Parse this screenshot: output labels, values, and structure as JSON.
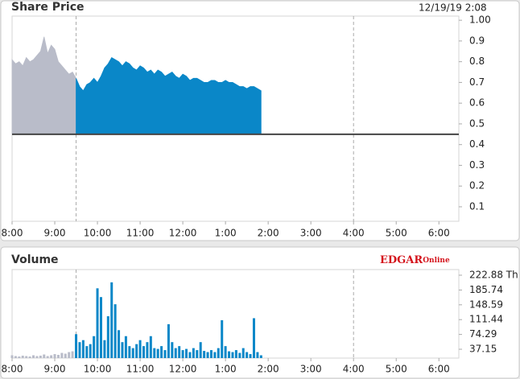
{
  "chart_data": [
    {
      "type": "area",
      "title": "Share Price",
      "date_label": "12/19/19 2:08",
      "xlim": [
        480,
        1108
      ],
      "xticks": [
        {
          "value": 480,
          "label": "8:00"
        },
        {
          "value": 540,
          "label": "9:00"
        },
        {
          "value": 600,
          "label": "10:00"
        },
        {
          "value": 660,
          "label": "11:00"
        },
        {
          "value": 720,
          "label": "12:00"
        },
        {
          "value": 780,
          "label": "1:00"
        },
        {
          "value": 840,
          "label": "2:00"
        },
        {
          "value": 900,
          "label": "3:00"
        },
        {
          "value": 960,
          "label": "4:00"
        },
        {
          "value": 1020,
          "label": "5:00"
        },
        {
          "value": 1080,
          "label": "6:00"
        }
      ],
      "ylim": [
        0.03,
        1.02
      ],
      "yticks": [
        {
          "value": 1.0,
          "label": "1.00"
        },
        0.9,
        0.8,
        0.7,
        0.6,
        0.5,
        0.4,
        0.3,
        0.2,
        0.1
      ],
      "reference_line": 0.45,
      "session_lines": [
        570,
        960
      ],
      "series": [
        {
          "color": "#b9bcc9",
          "x": [
            480,
            485,
            490,
            495,
            500,
            505,
            510,
            515,
            520,
            525,
            530,
            535,
            540,
            545,
            550,
            555,
            560,
            565,
            570
          ],
          "values": [
            0.81,
            0.79,
            0.8,
            0.78,
            0.82,
            0.8,
            0.81,
            0.83,
            0.85,
            0.92,
            0.84,
            0.88,
            0.86,
            0.8,
            0.78,
            0.76,
            0.74,
            0.75,
            0.72
          ]
        },
        {
          "color": "#0a87c8",
          "x": [
            570,
            575,
            580,
            585,
            590,
            595,
            600,
            605,
            610,
            615,
            620,
            625,
            630,
            635,
            640,
            645,
            650,
            655,
            660,
            665,
            670,
            675,
            680,
            685,
            690,
            695,
            700,
            705,
            710,
            715,
            720,
            725,
            730,
            735,
            740,
            745,
            750,
            755,
            760,
            765,
            770,
            775,
            780,
            785,
            790,
            795,
            800,
            805,
            810,
            815,
            820,
            825,
            830
          ],
          "values": [
            0.72,
            0.68,
            0.66,
            0.69,
            0.7,
            0.72,
            0.7,
            0.73,
            0.77,
            0.79,
            0.82,
            0.81,
            0.8,
            0.78,
            0.8,
            0.79,
            0.77,
            0.76,
            0.78,
            0.77,
            0.75,
            0.76,
            0.74,
            0.76,
            0.75,
            0.73,
            0.74,
            0.75,
            0.73,
            0.72,
            0.74,
            0.73,
            0.71,
            0.72,
            0.72,
            0.71,
            0.7,
            0.7,
            0.71,
            0.71,
            0.7,
            0.7,
            0.71,
            0.7,
            0.7,
            0.69,
            0.68,
            0.68,
            0.67,
            0.68,
            0.68,
            0.67,
            0.66
          ]
        }
      ]
    },
    {
      "type": "bar",
      "title": "Volume",
      "logo": [
        "EDGAR",
        "Online"
      ],
      "xlim": [
        480,
        1108
      ],
      "xticks": [
        {
          "value": 480,
          "label": "8:00"
        },
        {
          "value": 540,
          "label": "9:00"
        },
        {
          "value": 600,
          "label": "10:00"
        },
        {
          "value": 660,
          "label": "11:00"
        },
        {
          "value": 720,
          "label": "12:00"
        },
        {
          "value": 780,
          "label": "1:00"
        },
        {
          "value": 840,
          "label": "2:00"
        },
        {
          "value": 900,
          "label": "3:00"
        },
        {
          "value": 960,
          "label": "4:00"
        },
        {
          "value": 1020,
          "label": "5:00"
        },
        {
          "value": 1080,
          "label": "6:00"
        }
      ],
      "ylim": [
        15,
        237
      ],
      "yticks": [
        {
          "value": 222.88,
          "label": "222.88 Th"
        },
        185.74,
        148.59,
        111.44,
        74.29,
        37.15
      ],
      "session_lines": [
        570,
        960
      ],
      "series": [
        {
          "color": "#b9bcc9",
          "x": [
            480,
            485,
            490,
            495,
            500,
            505,
            510,
            515,
            520,
            525,
            530,
            535,
            540,
            545,
            550,
            555,
            560,
            565
          ],
          "values": [
            22,
            20,
            19,
            21,
            20,
            19,
            22,
            20,
            21,
            24,
            20,
            22,
            25,
            23,
            28,
            26,
            30,
            32
          ]
        },
        {
          "color": "#0a87c8",
          "x": [
            570,
            575,
            580,
            585,
            590,
            595,
            600,
            605,
            610,
            615,
            620,
            625,
            630,
            635,
            640,
            645,
            650,
            655,
            660,
            665,
            670,
            675,
            680,
            685,
            690,
            695,
            700,
            705,
            710,
            715,
            720,
            725,
            730,
            735,
            740,
            745,
            750,
            755,
            760,
            765,
            770,
            775,
            780,
            785,
            790,
            795,
            800,
            805,
            810,
            815,
            820,
            825,
            830
          ],
          "values": [
            75,
            55,
            60,
            45,
            50,
            70,
            190,
            168,
            60,
            120,
            205,
            150,
            85,
            55,
            70,
            45,
            40,
            50,
            60,
            45,
            55,
            70,
            40,
            38,
            45,
            35,
            100,
            55,
            40,
            45,
            35,
            38,
            30,
            40,
            35,
            55,
            33,
            30,
            35,
            30,
            40,
            110,
            45,
            32,
            30,
            35,
            28,
            40,
            30,
            25,
            115,
            30,
            22
          ]
        }
      ]
    }
  ]
}
